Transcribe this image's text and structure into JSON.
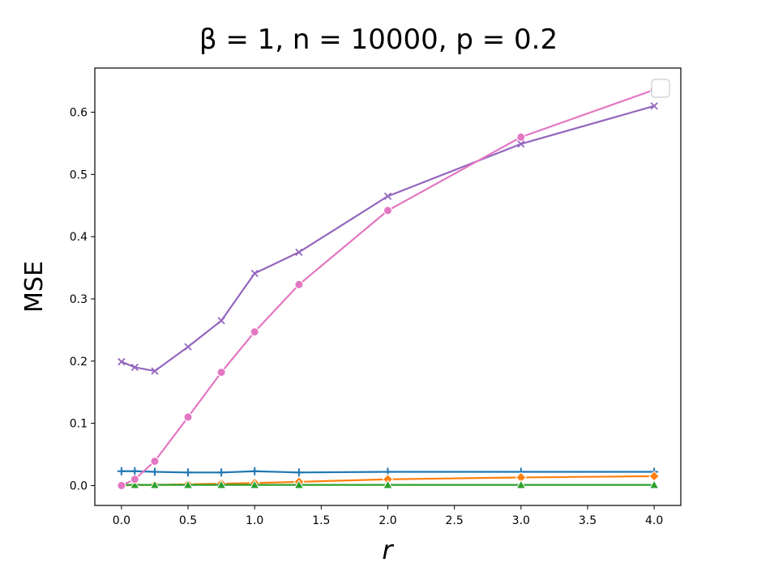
{
  "chart_data": {
    "type": "line",
    "title": "β = 1, n = 10000, p = 0.2",
    "xlabel": "r",
    "ylabel": "MSE",
    "xlim": [
      -0.2,
      4.2
    ],
    "ylim": [
      -0.032,
      0.671
    ],
    "xticks": [
      "0.0",
      "0.5",
      "1.0",
      "1.5",
      "2.0",
      "2.5",
      "3.0",
      "3.5",
      "4.0"
    ],
    "yticks": [
      "0.0",
      "0.1",
      "0.2",
      "0.3",
      "0.4",
      "0.5",
      "0.6"
    ],
    "grid": false,
    "legend": "top-right (empty)",
    "series": [
      {
        "color": "#1f77b4",
        "marker": "plus",
        "x": [
          0.0,
          0.1,
          0.25,
          0.5,
          0.75,
          1.0,
          1.333,
          2.0,
          3.0,
          4.0
        ],
        "y": [
          0.023,
          0.023,
          0.022,
          0.021,
          0.021,
          0.023,
          0.021,
          0.022,
          0.022,
          0.022
        ]
      },
      {
        "color": "#ff7f0e",
        "marker": "diamond",
        "x": [
          0.0,
          0.1,
          0.25,
          0.5,
          0.75,
          1.0,
          1.333,
          2.0,
          3.0,
          4.0
        ],
        "y": [
          0.0,
          0.001,
          0.001,
          0.002,
          0.003,
          0.004,
          0.006,
          0.01,
          0.013,
          0.015
        ]
      },
      {
        "color": "#2ca02c",
        "marker": "triangle",
        "x": [
          0.0,
          0.1,
          0.25,
          0.5,
          0.75,
          1.0,
          1.333,
          2.0,
          3.0,
          4.0
        ],
        "y": [
          0.001,
          0.001,
          0.001,
          0.001,
          0.001,
          0.001,
          0.001,
          0.001,
          0.001,
          0.001
        ]
      },
      {
        "color": "#9467bd",
        "marker": "x",
        "x": [
          0.0,
          0.1,
          0.25,
          0.5,
          0.75,
          1.0,
          1.333,
          2.0,
          3.0,
          4.0
        ],
        "y": [
          0.199,
          0.19,
          0.184,
          0.223,
          0.265,
          0.341,
          0.375,
          0.465,
          0.549,
          0.61
        ]
      },
      {
        "color": "#e377c2",
        "marker": "circle",
        "x": [
          0.0,
          0.1,
          0.25,
          0.5,
          0.75,
          1.0,
          1.333,
          2.0,
          3.0,
          4.0
        ],
        "y": [
          0.0,
          0.01,
          0.039,
          0.11,
          0.182,
          0.247,
          0.323,
          0.442,
          0.56,
          0.636
        ]
      }
    ]
  }
}
